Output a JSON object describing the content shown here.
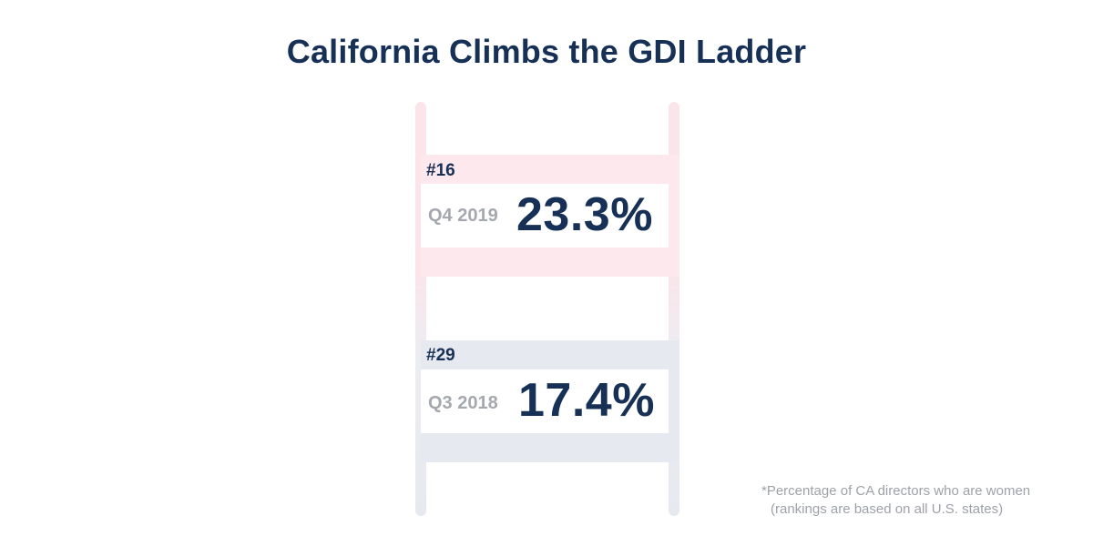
{
  "title": "California Climbs the GDI Ladder",
  "entries": [
    {
      "rank": "#16",
      "quarter": "Q4 2019",
      "percent": "23.3%",
      "color": "#fde8ee"
    },
    {
      "rank": "#29",
      "quarter": "Q3 2018",
      "percent": "17.4%",
      "color": "#e6e9ef"
    }
  ],
  "footnote": {
    "line1": "*Percentage of CA directors who are women",
    "line2": "(rankings are based on all U.S. states)"
  },
  "colors": {
    "navy": "#163056",
    "pink": "#fde8ee",
    "gray": "#e6e9ef",
    "muted_text": "#a5a8ae"
  }
}
